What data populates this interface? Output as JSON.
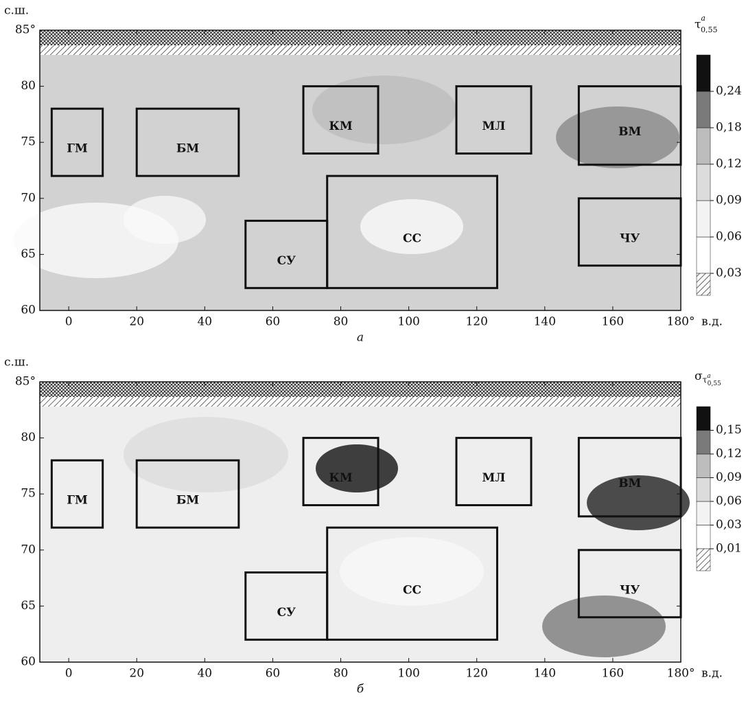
{
  "chart_data": [
    {
      "type": "map",
      "caption": "а",
      "y_unit": "с.ш.",
      "x_unit": "в.д.",
      "colorbar_title": {
        "symbol": "τ",
        "sup": "a",
        "sub": "0,55"
      },
      "xlim": [
        -8.5,
        180
      ],
      "ylim": [
        60,
        85
      ],
      "xticks": [
        0,
        20,
        40,
        60,
        80,
        100,
        120,
        140,
        160,
        {
          "value": 180,
          "label": "180°"
        }
      ],
      "yticks": [
        60,
        65,
        70,
        75,
        80,
        {
          "value": 85,
          "label": "85°"
        }
      ],
      "levels": [
        {
          "value": 0.03,
          "label": "0,03"
        },
        {
          "value": 0.06,
          "label": "0,06"
        },
        {
          "value": 0.09,
          "label": "0,09"
        },
        {
          "value": 0.12,
          "label": "0,12"
        },
        {
          "value": 0.18,
          "label": "0,18"
        },
        {
          "value": 0.24,
          "label": "0,24"
        }
      ],
      "colors": [
        "#ffffff",
        "#f3f3f3",
        "#dcdcdc",
        "#bdbdbd",
        "#7a7a7a",
        "#111111"
      ],
      "regions": [
        {
          "name": "ГМ",
          "lon": [
            -5,
            10
          ],
          "lat": [
            72,
            78
          ]
        },
        {
          "name": "БМ",
          "lon": [
            20,
            50
          ],
          "lat": [
            72,
            78
          ]
        },
        {
          "name": "КМ",
          "lon": [
            69,
            91
          ],
          "lat": [
            74,
            80
          ]
        },
        {
          "name": "МЛ",
          "lon": [
            114,
            136
          ],
          "lat": [
            74,
            80
          ]
        },
        {
          "name": "ВМ",
          "lon": [
            150,
            180
          ],
          "lat": [
            73,
            80
          ]
        },
        {
          "name": "СС",
          "lon": [
            76,
            126
          ],
          "lat": [
            62,
            72
          ]
        },
        {
          "name": "СУ",
          "lon": [
            52,
            76
          ],
          "lat": [
            62,
            68
          ]
        },
        {
          "name": "ЧУ",
          "lon": [
            150,
            180
          ],
          "lat": [
            64,
            70
          ]
        }
      ]
    },
    {
      "type": "map",
      "caption": "б",
      "y_unit": "с.ш.",
      "x_unit": "в.д.",
      "colorbar_title": {
        "symbol": "σ",
        "sub": "τ",
        "sub_sup": "a",
        "sub_sub": "0,55"
      },
      "xlim": [
        -8.5,
        180
      ],
      "ylim": [
        60,
        85
      ],
      "xticks": [
        0,
        20,
        40,
        60,
        80,
        100,
        120,
        140,
        160,
        {
          "value": 180,
          "label": "180°"
        }
      ],
      "yticks": [
        60,
        65,
        70,
        75,
        80,
        {
          "value": 85,
          "label": "85°"
        }
      ],
      "levels": [
        {
          "value": 0.01,
          "label": "0,01"
        },
        {
          "value": 0.03,
          "label": "0,03"
        },
        {
          "value": 0.06,
          "label": "0,06"
        },
        {
          "value": 0.09,
          "label": "0,09"
        },
        {
          "value": 0.12,
          "label": "0,12"
        },
        {
          "value": 0.15,
          "label": "0,15"
        }
      ],
      "colors": [
        "#ffffff",
        "#f3f3f3",
        "#dcdcdc",
        "#bdbdbd",
        "#7a7a7a",
        "#111111"
      ],
      "regions": [
        {
          "name": "ГМ",
          "lon": [
            -5,
            10
          ],
          "lat": [
            72,
            78
          ]
        },
        {
          "name": "БМ",
          "lon": [
            20,
            50
          ],
          "lat": [
            72,
            78
          ]
        },
        {
          "name": "КМ",
          "lon": [
            69,
            91
          ],
          "lat": [
            74,
            80
          ]
        },
        {
          "name": "МЛ",
          "lon": [
            114,
            136
          ],
          "lat": [
            74,
            80
          ]
        },
        {
          "name": "ВМ",
          "lon": [
            150,
            180
          ],
          "lat": [
            73,
            80
          ]
        },
        {
          "name": "СС",
          "lon": [
            76,
            126
          ],
          "lat": [
            62,
            72
          ]
        },
        {
          "name": "СУ",
          "lon": [
            52,
            76
          ],
          "lat": [
            62,
            68
          ]
        },
        {
          "name": "ЧУ",
          "lon": [
            150,
            180
          ],
          "lat": [
            64,
            70
          ]
        }
      ]
    }
  ]
}
